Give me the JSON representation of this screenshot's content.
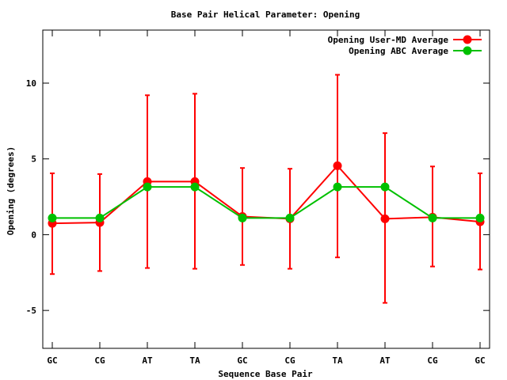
{
  "chart_data": {
    "type": "line",
    "title": "Base Pair Helical Parameter: Opening",
    "xlabel": "Sequence Base Pair",
    "ylabel": "Opening (degrees)",
    "categories": [
      "GC",
      "CG",
      "AT",
      "TA",
      "GC",
      "CG",
      "TA",
      "AT",
      "CG",
      "GC"
    ],
    "ylim": [
      -7.5,
      13.5
    ],
    "yticks": [
      -5,
      0,
      5,
      10
    ],
    "legend_position": "top-right",
    "grid": false,
    "series": [
      {
        "name": "Opening User-MD Average",
        "color": "#ff0000",
        "values": [
          0.75,
          0.8,
          3.5,
          3.5,
          1.2,
          1.05,
          4.55,
          1.05,
          1.15,
          0.85
        ],
        "error_low": [
          -2.6,
          -2.4,
          -2.2,
          -2.25,
          -2.0,
          -2.25,
          -1.5,
          -4.5,
          -2.1,
          -2.3
        ],
        "error_high": [
          4.05,
          4.0,
          9.2,
          9.3,
          4.4,
          4.35,
          10.55,
          6.7,
          4.5,
          4.05
        ]
      },
      {
        "name": "Opening ABC Average",
        "color": "#00c000",
        "values": [
          1.1,
          1.1,
          3.15,
          3.15,
          1.1,
          1.1,
          3.15,
          3.15,
          1.1,
          1.1
        ]
      }
    ]
  }
}
